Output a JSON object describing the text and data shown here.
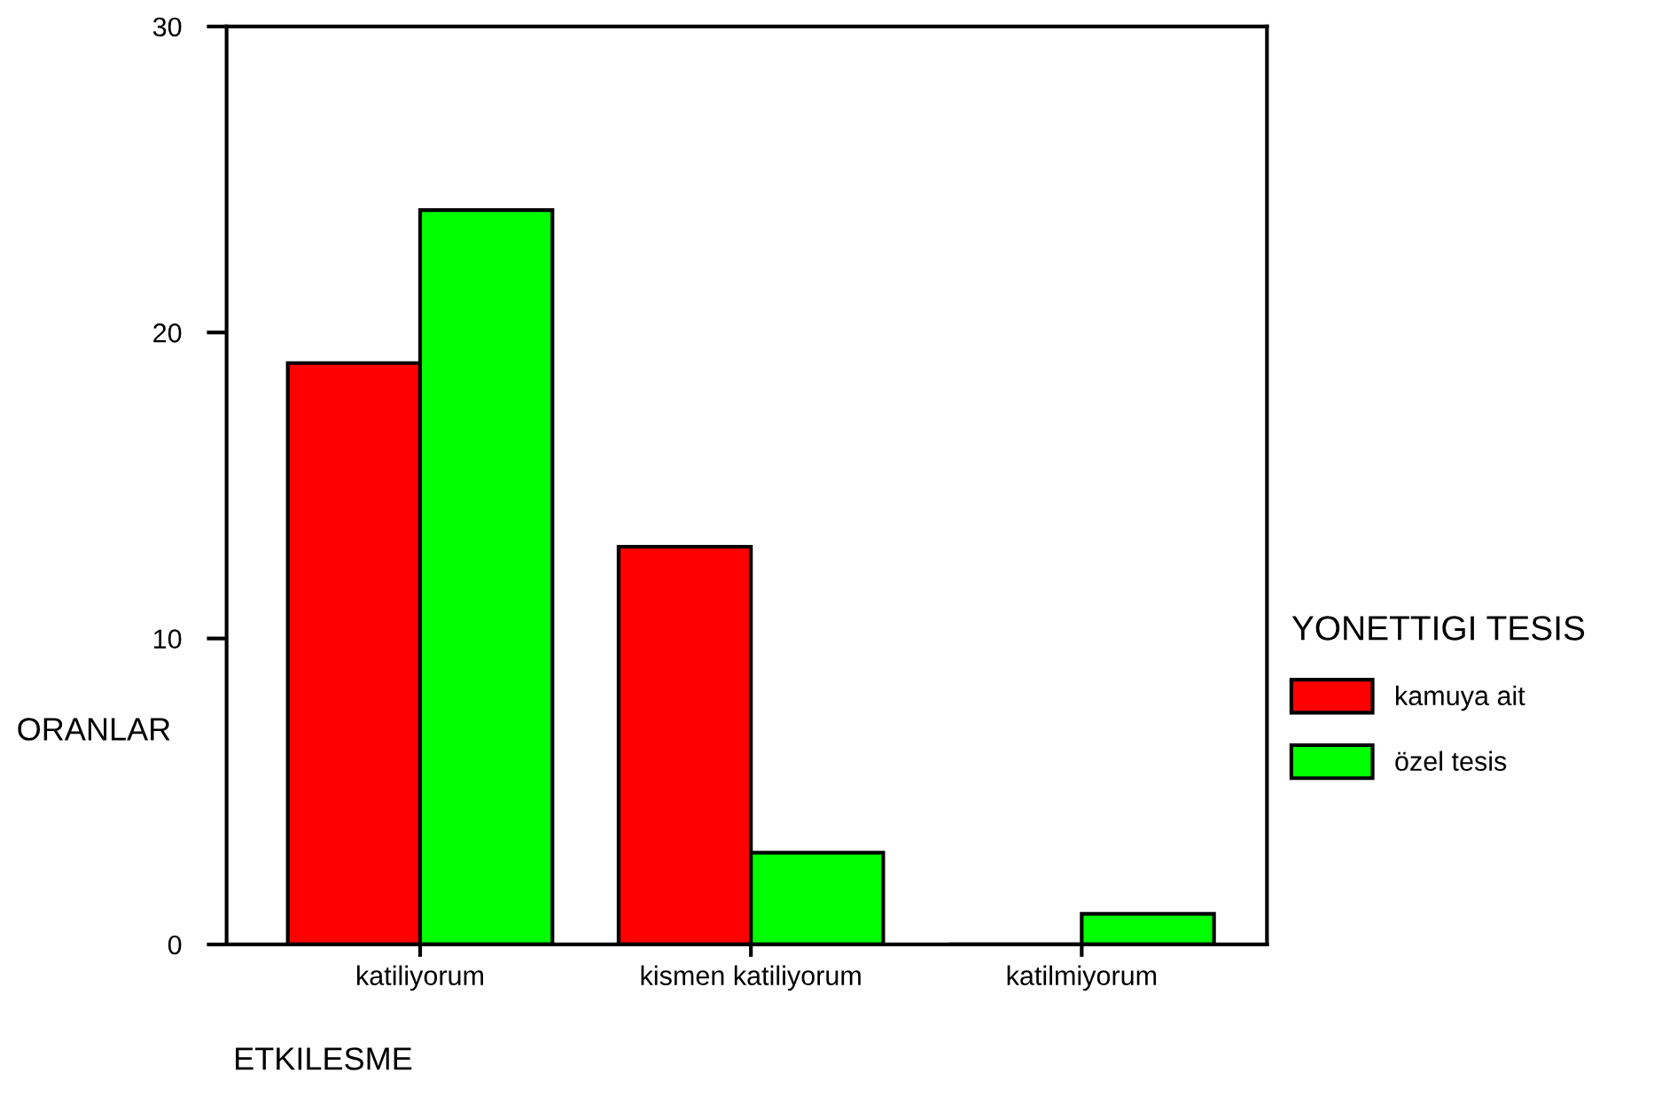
{
  "chart_data": {
    "type": "bar",
    "xlabel": "ETKILESME",
    "ylabel": "ORANLAR",
    "legend_title": "YONETTIGI TESIS",
    "categories": [
      "katiliyorum",
      "kismen katiliyorum",
      "katilmiyorum"
    ],
    "series": [
      {
        "name": "kamuya ait",
        "color": "#ff0000",
        "values": [
          19,
          13,
          0
        ]
      },
      {
        "name": "özel tesis",
        "color": "#00ff00",
        "values": [
          24,
          3,
          1
        ]
      }
    ],
    "ylim": [
      0,
      30
    ],
    "yticks": [
      0,
      10,
      20,
      30
    ],
    "grid": false,
    "legend": "right"
  }
}
